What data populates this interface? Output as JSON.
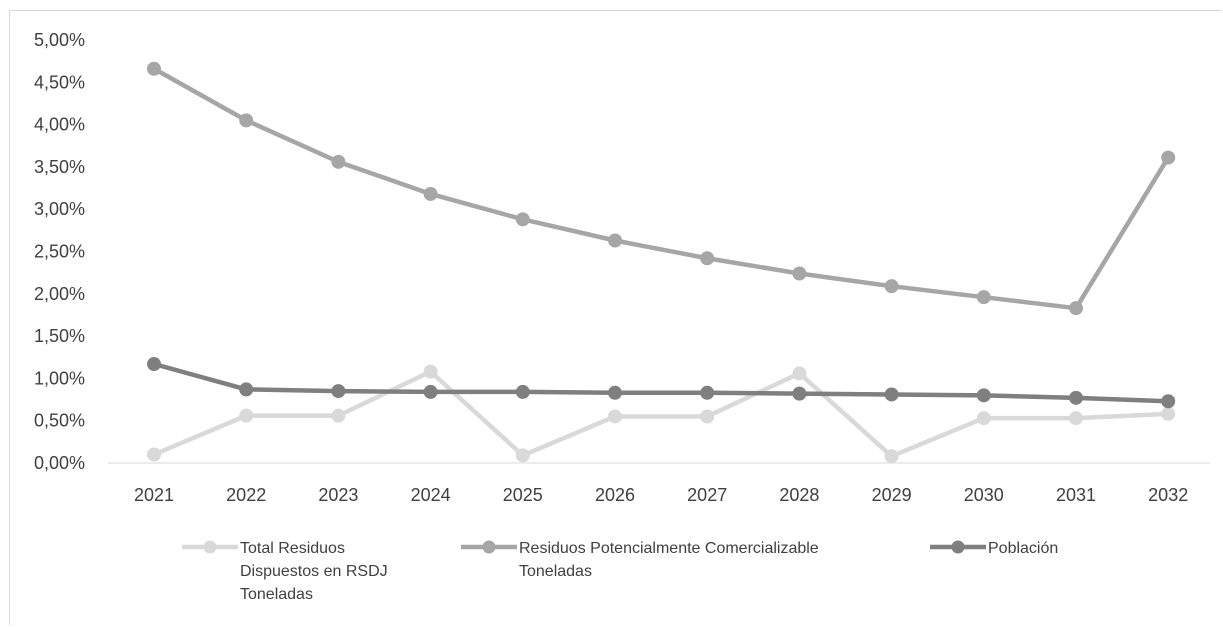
{
  "chart_data": {
    "type": "line",
    "title": "",
    "xlabel": "",
    "ylabel": "",
    "categories": [
      "2021",
      "2022",
      "2023",
      "2024",
      "2025",
      "2026",
      "2027",
      "2028",
      "2029",
      "2030",
      "2031",
      "2032"
    ],
    "y_ticks": [
      "0,00%",
      "0,50%",
      "1,00%",
      "1,50%",
      "2,00%",
      "2,50%",
      "3,00%",
      "3,50%",
      "4,00%",
      "4,50%",
      "5,00%"
    ],
    "ylim": [
      0,
      5
    ],
    "y_unit": "%",
    "grid": false,
    "legend_position": "bottom",
    "series": [
      {
        "name_lines": [
          "Total Residuos",
          "Dispuestos en  RSDJ",
          "Toneladas"
        ],
        "color": "#d9d9d9",
        "values": [
          0.1,
          0.56,
          0.56,
          1.08,
          0.09,
          0.55,
          0.55,
          1.06,
          0.08,
          0.53,
          0.53,
          0.58
        ]
      },
      {
        "name_lines": [
          "Residuos  Potencialmente Comercializable",
          "Toneladas"
        ],
        "color": "#a6a6a6",
        "values": [
          4.66,
          4.05,
          3.56,
          3.18,
          2.88,
          2.63,
          2.42,
          2.24,
          2.09,
          1.96,
          1.83,
          3.61
        ]
      },
      {
        "name_lines": [
          "Población"
        ],
        "color": "#7f7f7f",
        "values": [
          1.17,
          0.87,
          0.85,
          0.84,
          0.84,
          0.83,
          0.83,
          0.82,
          0.81,
          0.8,
          0.77,
          0.73
        ]
      }
    ]
  }
}
